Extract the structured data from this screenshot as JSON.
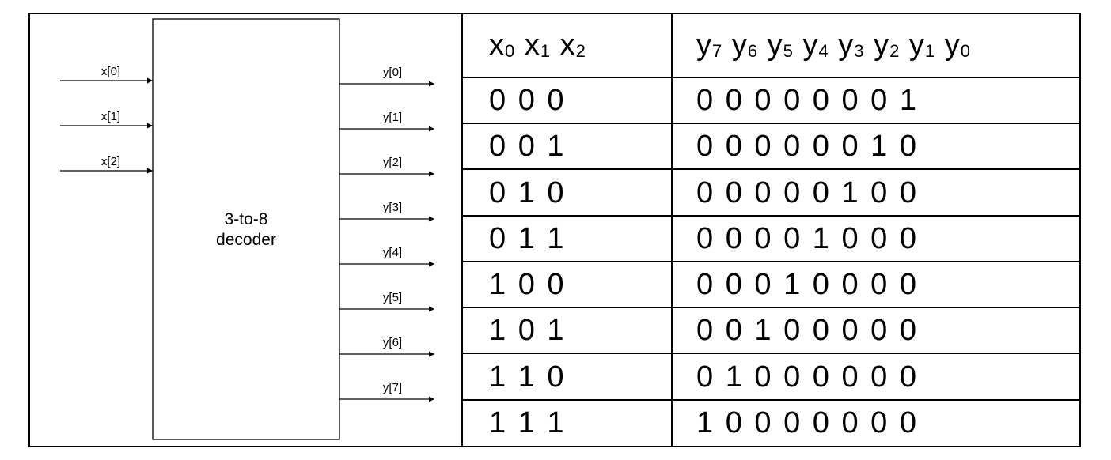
{
  "diagram": {
    "block_label_line1": "3-to-8",
    "block_label_line2": "decoder",
    "inputs": [
      "x[0]",
      "x[1]",
      "x[2]"
    ],
    "outputs": [
      "y[0]",
      "y[1]",
      "y[2]",
      "y[3]",
      "y[4]",
      "y[5]",
      "y[6]",
      "y[7]"
    ]
  },
  "truth_table": {
    "header_inputs": [
      {
        "base": "x",
        "sub": "0"
      },
      {
        "base": "x",
        "sub": "1"
      },
      {
        "base": "x",
        "sub": "2"
      }
    ],
    "header_outputs": [
      {
        "base": "y",
        "sub": "7"
      },
      {
        "base": "y",
        "sub": "6"
      },
      {
        "base": "y",
        "sub": "5"
      },
      {
        "base": "y",
        "sub": "4"
      },
      {
        "base": "y",
        "sub": "3"
      },
      {
        "base": "y",
        "sub": "2"
      },
      {
        "base": "y",
        "sub": "1"
      },
      {
        "base": "y",
        "sub": "0"
      }
    ],
    "rows": [
      {
        "inputs": "0 0 0",
        "outputs": "0 0 0 0 0 0 0 1"
      },
      {
        "inputs": "0 0 1",
        "outputs": "0 0 0 0 0 0 1 0"
      },
      {
        "inputs": "0 1 0",
        "outputs": "0 0 0 0 0 1 0 0"
      },
      {
        "inputs": "0 1 1",
        "outputs": "0 0 0 0 1 0 0 0"
      },
      {
        "inputs": "1 0 0",
        "outputs": "0 0 0 1 0 0 0 0"
      },
      {
        "inputs": "1 0 1",
        "outputs": "0 0 1 0 0 0 0 0"
      },
      {
        "inputs": "1 1 0",
        "outputs": "0 1 0 0 0 0 0 0"
      },
      {
        "inputs": "1 1 1",
        "outputs": "1 0 0 0 0 0 0 0"
      }
    ]
  }
}
